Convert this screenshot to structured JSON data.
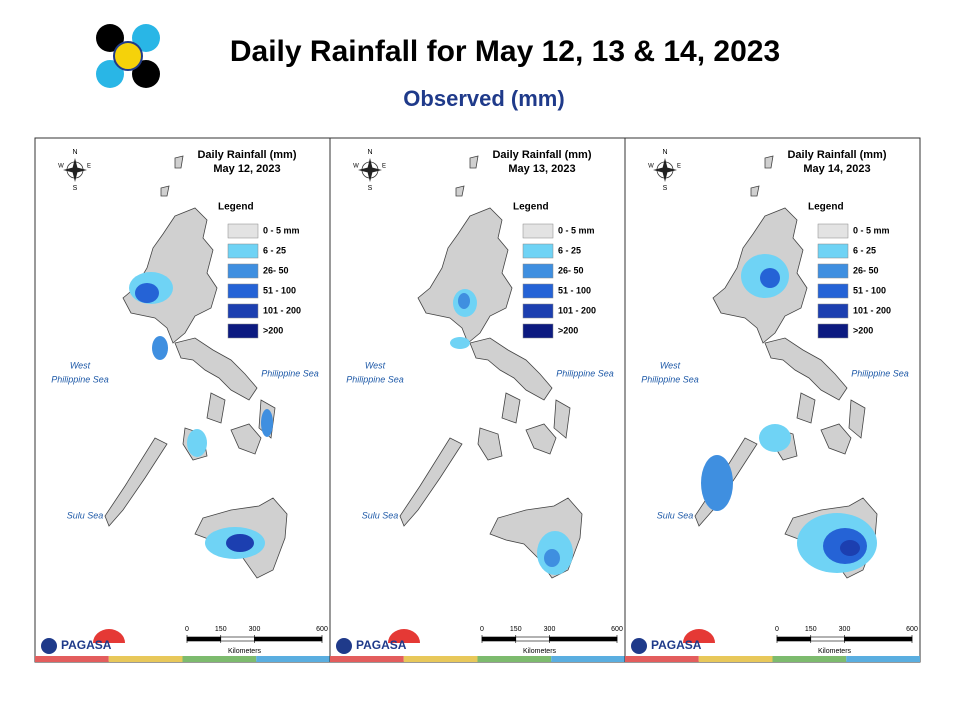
{
  "header": {
    "title": "Daily Rainfall for May 12, 13 & 14, 2023",
    "subtitle": "Observed (mm)"
  },
  "panels": [
    {
      "heading": "Daily Rainfall (mm)",
      "date": "May 12, 2023"
    },
    {
      "heading": "Daily Rainfall (mm)",
      "date": "May 13, 2023"
    },
    {
      "heading": "Daily Rainfall (mm)",
      "date": "May 14, 2023"
    }
  ],
  "legend": {
    "title": "Legend",
    "items": [
      {
        "label": "0 - 5 mm",
        "color": "#e3e3e3"
      },
      {
        "label": "6 - 25",
        "color": "#6fd3f5"
      },
      {
        "label": "26- 50",
        "color": "#3f8fe0"
      },
      {
        "label": "51 - 100",
        "color": "#2563d6"
      },
      {
        "label": "101 - 200",
        "color": "#1c3fb0"
      },
      {
        "label": ">200",
        "color": "#0c1a80"
      }
    ]
  },
  "seas": {
    "west": [
      "West",
      "Philippine Sea"
    ],
    "east": "Philippine Sea",
    "sulu": "Sulu Sea"
  },
  "compass": {
    "n": "N",
    "e": "E",
    "s": "S",
    "w": "W"
  },
  "scale": {
    "ticks": [
      0,
      150,
      300,
      600
    ],
    "unit": "Kilometers"
  },
  "logo": "PAGASA"
}
